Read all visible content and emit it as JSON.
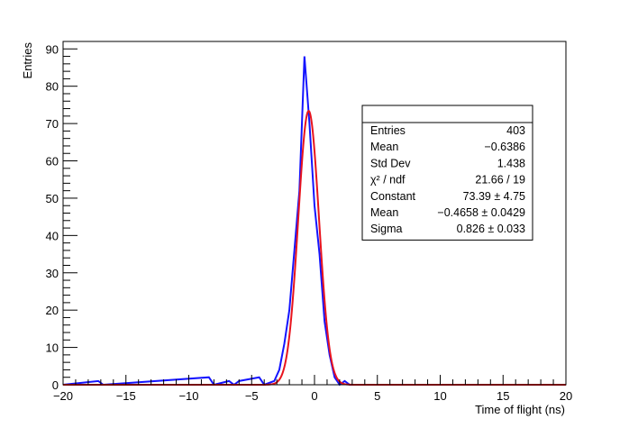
{
  "chart_data": {
    "type": "histogram",
    "xlabel": "Time of flight (ns)",
    "ylabel": "Entries",
    "xlim": [
      -20,
      20
    ],
    "ylim": [
      0,
      92
    ],
    "x_ticks": [
      -20,
      -15,
      -10,
      -5,
      0,
      5,
      10,
      15,
      20
    ],
    "y_ticks": [
      0,
      10,
      20,
      30,
      40,
      50,
      60,
      70,
      80,
      90
    ],
    "bin_width": 0.4,
    "histogram": {
      "color": "#1414ff",
      "bins": [
        {
          "x0": -17.2,
          "count": 1
        },
        {
          "x0": -8.4,
          "count": 2
        },
        {
          "x0": -6.8,
          "count": 1
        },
        {
          "x0": -6.0,
          "count": 1
        },
        {
          "x0": -5.6,
          "count": 1
        },
        {
          "x0": -5.2,
          "count": 1
        },
        {
          "x0": -4.8,
          "count": 1
        },
        {
          "x0": -4.4,
          "count": 2
        },
        {
          "x0": -3.2,
          "count": 1
        },
        {
          "x0": -2.8,
          "count": 4
        },
        {
          "x0": -2.4,
          "count": 11
        },
        {
          "x0": -2.0,
          "count": 20
        },
        {
          "x0": -1.6,
          "count": 36
        },
        {
          "x0": -1.2,
          "count": 52
        },
        {
          "x0": -0.8,
          "count": 88
        },
        {
          "x0": -0.4,
          "count": 70
        },
        {
          "x0": 0.0,
          "count": 48
        },
        {
          "x0": 0.4,
          "count": 35
        },
        {
          "x0": 0.8,
          "count": 17
        },
        {
          "x0": 1.2,
          "count": 8
        },
        {
          "x0": 1.6,
          "count": 2
        },
        {
          "x0": 2.4,
          "count": 1
        }
      ]
    },
    "fit": {
      "color": "#e8141e",
      "function": "gaussian",
      "constant": 73.39,
      "mean": -0.4658,
      "sigma": 0.826
    },
    "stats_box": {
      "rows": [
        {
          "label": "Entries",
          "value": "403"
        },
        {
          "label": "Mean",
          "value": "−0.6386"
        },
        {
          "label": "Std Dev",
          "value": "1.438"
        },
        {
          "label": "χ² / ndf",
          "value": "21.66 / 19"
        },
        {
          "label": "Constant",
          "value": "73.39 ± 4.75"
        },
        {
          "label": "Mean",
          "value": "−0.4658 ± 0.0429"
        },
        {
          "label": "Sigma",
          "value": "0.826 ± 0.033"
        }
      ]
    }
  }
}
